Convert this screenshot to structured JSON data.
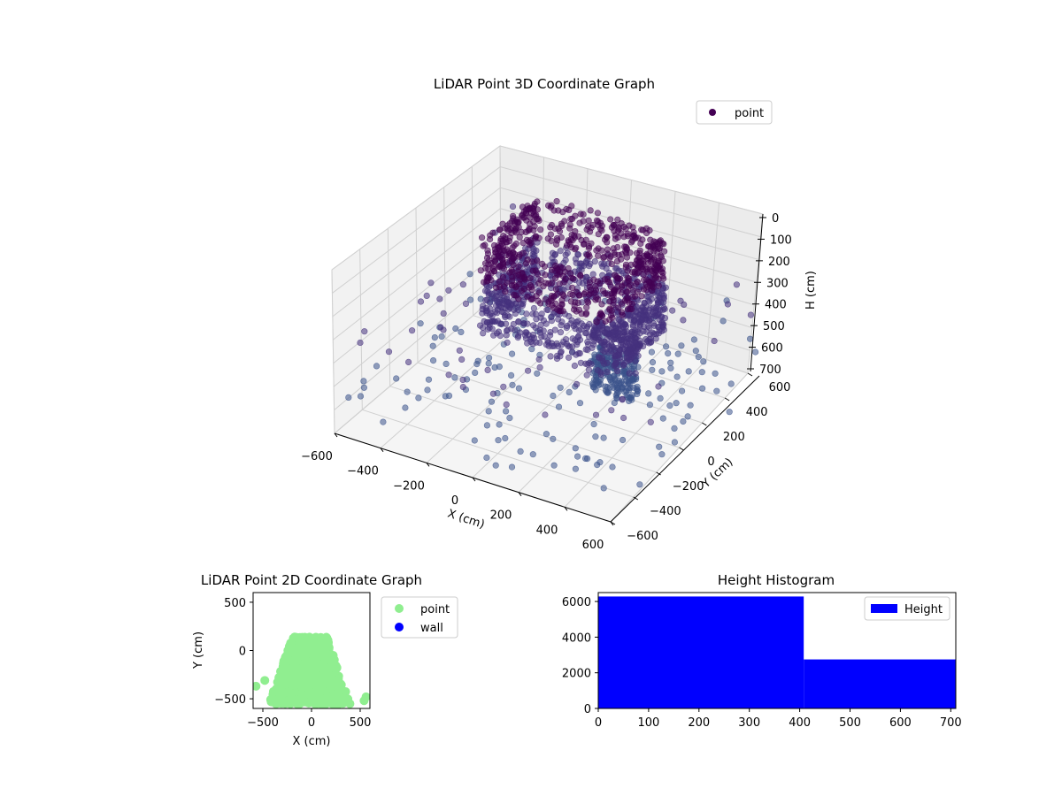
{
  "chart_data": [
    {
      "id": "lidar-3d",
      "type": "scatter",
      "title": "LiDAR Point 3D Coordinate Graph",
      "xlabel": "X (cm)",
      "ylabel": "Y (cm)",
      "zlabel": "H (cm)",
      "xlim": [
        -600,
        600
      ],
      "ylim": [
        -600,
        600
      ],
      "zlim": [
        700,
        0
      ],
      "xticks": [
        "−600",
        "−400",
        "−200",
        "0",
        "200",
        "400",
        "600"
      ],
      "yticks": [
        "−600",
        "−400",
        "−200",
        "0",
        "200",
        "400",
        "600"
      ],
      "zticks": [
        "0",
        "100",
        "200",
        "300",
        "400",
        "500",
        "600",
        "700"
      ],
      "grid": true,
      "legend": {
        "placement": "top-right",
        "entries": [
          {
            "label": "point",
            "color": "#440154"
          }
        ]
      },
      "colormap": [
        "#440154",
        "#46327e",
        "#3b528b"
      ],
      "note_z_axis": "inverted (0 at top, 700 at bottom)"
    },
    {
      "id": "lidar-2d",
      "type": "scatter",
      "title": "LiDAR Point 2D Coordinate Graph",
      "xlabel": "X (cm)",
      "ylabel": "Y (cm)",
      "xlim": [
        -600,
        600
      ],
      "ylim": [
        -600,
        600
      ],
      "xticks": [
        "−500",
        "0",
        "500"
      ],
      "yticks": [
        "−500",
        "0",
        "500"
      ],
      "legend": {
        "placement": "outside-right",
        "entries": [
          {
            "label": "point",
            "color": "#90ee90"
          },
          {
            "label": "wall",
            "color": "#0000ff"
          }
        ]
      }
    },
    {
      "id": "height-hist",
      "type": "bar",
      "title": "Height Histogram",
      "xlabel": "",
      "ylabel": "",
      "xlim": [
        0,
        710
      ],
      "ylim": [
        0,
        6500
      ],
      "xticks": [
        "0",
        "100",
        "200",
        "300",
        "400",
        "500",
        "600",
        "700"
      ],
      "yticks": [
        "0",
        "2000",
        "4000",
        "6000"
      ],
      "bins": [
        {
          "start": 0,
          "end": 408,
          "count": 6280
        },
        {
          "start": 408,
          "end": 710,
          "count": 2750
        }
      ],
      "color": "#0000ff",
      "legend": {
        "placement": "top-right",
        "entries": [
          {
            "label": "Height",
            "color": "#0000ff"
          }
        ]
      }
    }
  ]
}
